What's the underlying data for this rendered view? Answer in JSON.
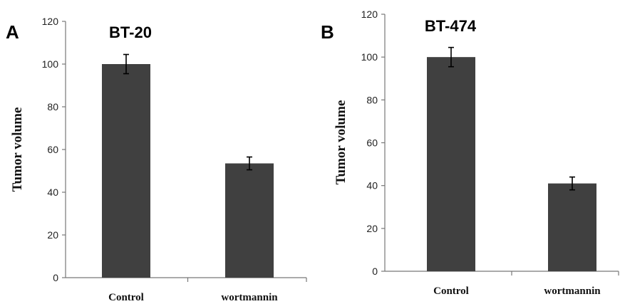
{
  "chart_data": [
    {
      "type": "bar",
      "panel": "A",
      "title": "BT-20",
      "ylabel": "Tumor volume",
      "xlabel": "",
      "categories": [
        "Control",
        "wortmannin"
      ],
      "values": [
        100,
        53.5
      ],
      "errors": [
        4.5,
        3.0
      ],
      "ylim": [
        0,
        120
      ],
      "yticks": [
        0,
        20,
        40,
        60,
        80,
        100,
        120
      ],
      "bar_color": "#404040",
      "grid": false,
      "legend": "none"
    },
    {
      "type": "bar",
      "panel": "B",
      "title": "BT-474",
      "ylabel": "Tumor volume",
      "xlabel": "",
      "categories": [
        "Control",
        "wortmannin"
      ],
      "values": [
        100,
        41
      ],
      "errors": [
        4.5,
        3.0
      ],
      "ylim": [
        0,
        120
      ],
      "yticks": [
        0,
        20,
        40,
        60,
        80,
        100,
        120
      ],
      "bar_color": "#404040",
      "grid": false,
      "legend": "none"
    }
  ]
}
